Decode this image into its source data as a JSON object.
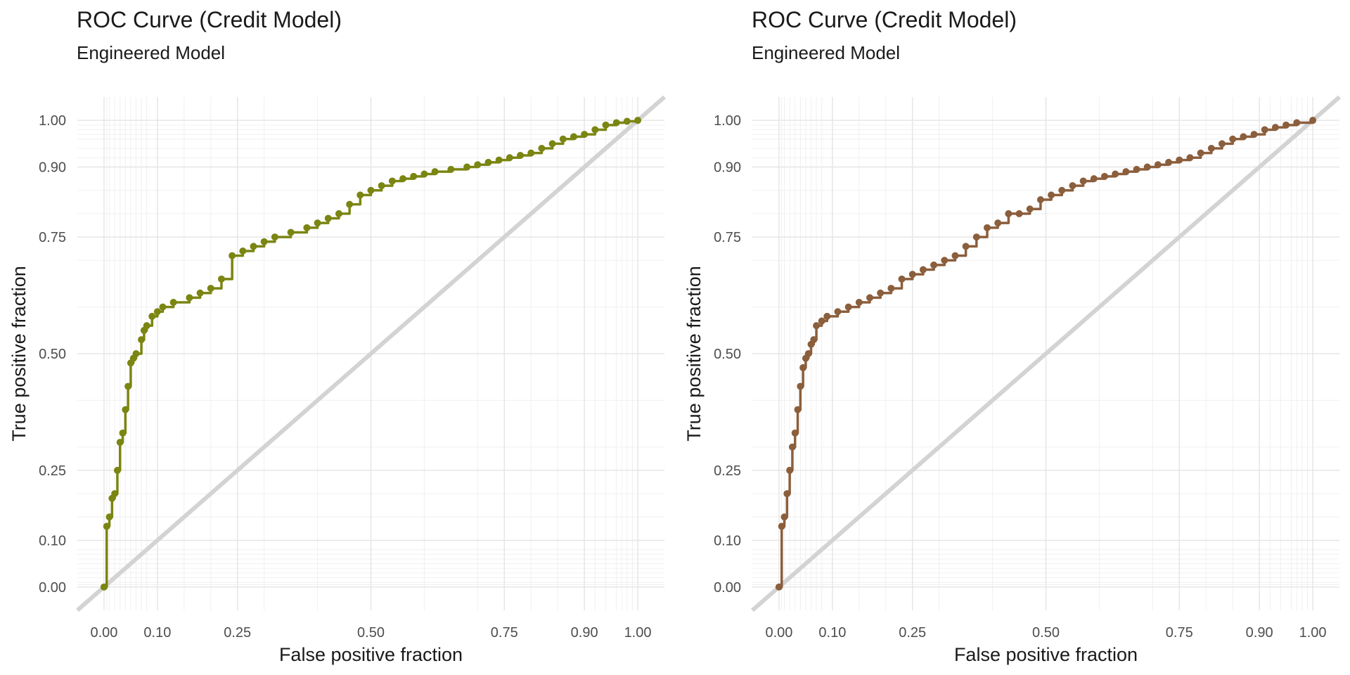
{
  "chart_data": [
    {
      "type": "line",
      "title": "ROC Curve (Credit Model)",
      "subtitle": "Engineered Model",
      "xlabel": "False positive fraction",
      "ylabel": "True positive fraction",
      "x_ticks": [
        "0.00",
        "0.10",
        "0.25",
        "0.50",
        "0.75",
        "0.90",
        "1.00"
      ],
      "y_ticks": [
        "0.00",
        "0.10",
        "0.25",
        "0.50",
        "0.75",
        "0.90",
        "1.00"
      ],
      "xlim": [
        0,
        1
      ],
      "ylim": [
        0,
        1
      ],
      "grid": true,
      "reference_line": true,
      "reference_color": "#d3d3d3",
      "line_color": "#7a8512",
      "series": [
        {
          "x": [
            0.0,
            0.005,
            0.01,
            0.015,
            0.02,
            0.025,
            0.03,
            0.035,
            0.04,
            0.045,
            0.05,
            0.055,
            0.06,
            0.07,
            0.075,
            0.08,
            0.09,
            0.1,
            0.11,
            0.13,
            0.16,
            0.18,
            0.2,
            0.22,
            0.24,
            0.26,
            0.28,
            0.3,
            0.32,
            0.35,
            0.38,
            0.4,
            0.42,
            0.44,
            0.46,
            0.48,
            0.5,
            0.52,
            0.54,
            0.56,
            0.58,
            0.6,
            0.62,
            0.65,
            0.68,
            0.7,
            0.72,
            0.74,
            0.76,
            0.78,
            0.8,
            0.82,
            0.84,
            0.86,
            0.88,
            0.9,
            0.92,
            0.94,
            0.96,
            0.98,
            1.0
          ],
          "y": [
            0.0,
            0.13,
            0.15,
            0.19,
            0.2,
            0.25,
            0.31,
            0.33,
            0.38,
            0.43,
            0.48,
            0.49,
            0.5,
            0.53,
            0.55,
            0.56,
            0.58,
            0.59,
            0.6,
            0.61,
            0.62,
            0.63,
            0.64,
            0.66,
            0.71,
            0.72,
            0.73,
            0.74,
            0.75,
            0.76,
            0.77,
            0.78,
            0.79,
            0.8,
            0.82,
            0.84,
            0.85,
            0.86,
            0.87,
            0.875,
            0.88,
            0.885,
            0.89,
            0.895,
            0.9,
            0.905,
            0.91,
            0.915,
            0.92,
            0.925,
            0.93,
            0.94,
            0.95,
            0.96,
            0.965,
            0.97,
            0.98,
            0.99,
            0.995,
            0.998,
            1.0
          ]
        }
      ]
    },
    {
      "type": "line",
      "title": "ROC Curve (Credit Model)",
      "subtitle": "Engineered Model",
      "xlabel": "False positive fraction",
      "ylabel": "True positive fraction",
      "x_ticks": [
        "0.00",
        "0.10",
        "0.25",
        "0.50",
        "0.75",
        "0.90",
        "1.00"
      ],
      "y_ticks": [
        "0.00",
        "0.10",
        "0.25",
        "0.50",
        "0.75",
        "0.90",
        "1.00"
      ],
      "xlim": [
        0,
        1
      ],
      "ylim": [
        0,
        1
      ],
      "grid": true,
      "reference_line": true,
      "reference_color": "#d3d3d3",
      "line_color": "#8b5e3c",
      "series": [
        {
          "x": [
            0.0,
            0.005,
            0.01,
            0.015,
            0.02,
            0.025,
            0.03,
            0.035,
            0.04,
            0.045,
            0.05,
            0.055,
            0.06,
            0.065,
            0.07,
            0.08,
            0.09,
            0.11,
            0.13,
            0.15,
            0.17,
            0.19,
            0.21,
            0.23,
            0.25,
            0.27,
            0.29,
            0.31,
            0.33,
            0.35,
            0.37,
            0.39,
            0.41,
            0.43,
            0.45,
            0.47,
            0.49,
            0.51,
            0.53,
            0.55,
            0.57,
            0.59,
            0.61,
            0.63,
            0.65,
            0.67,
            0.69,
            0.71,
            0.73,
            0.75,
            0.77,
            0.79,
            0.81,
            0.83,
            0.85,
            0.87,
            0.89,
            0.91,
            0.93,
            0.95,
            0.97,
            1.0
          ],
          "y": [
            0.0,
            0.13,
            0.15,
            0.2,
            0.25,
            0.3,
            0.33,
            0.38,
            0.43,
            0.47,
            0.49,
            0.5,
            0.52,
            0.53,
            0.56,
            0.57,
            0.58,
            0.59,
            0.6,
            0.61,
            0.62,
            0.63,
            0.64,
            0.66,
            0.67,
            0.68,
            0.69,
            0.7,
            0.71,
            0.73,
            0.75,
            0.77,
            0.78,
            0.8,
            0.8,
            0.81,
            0.83,
            0.84,
            0.85,
            0.86,
            0.87,
            0.875,
            0.88,
            0.885,
            0.89,
            0.895,
            0.9,
            0.905,
            0.91,
            0.915,
            0.92,
            0.93,
            0.94,
            0.95,
            0.96,
            0.965,
            0.97,
            0.98,
            0.985,
            0.99,
            0.995,
            1.0
          ]
        }
      ]
    }
  ]
}
